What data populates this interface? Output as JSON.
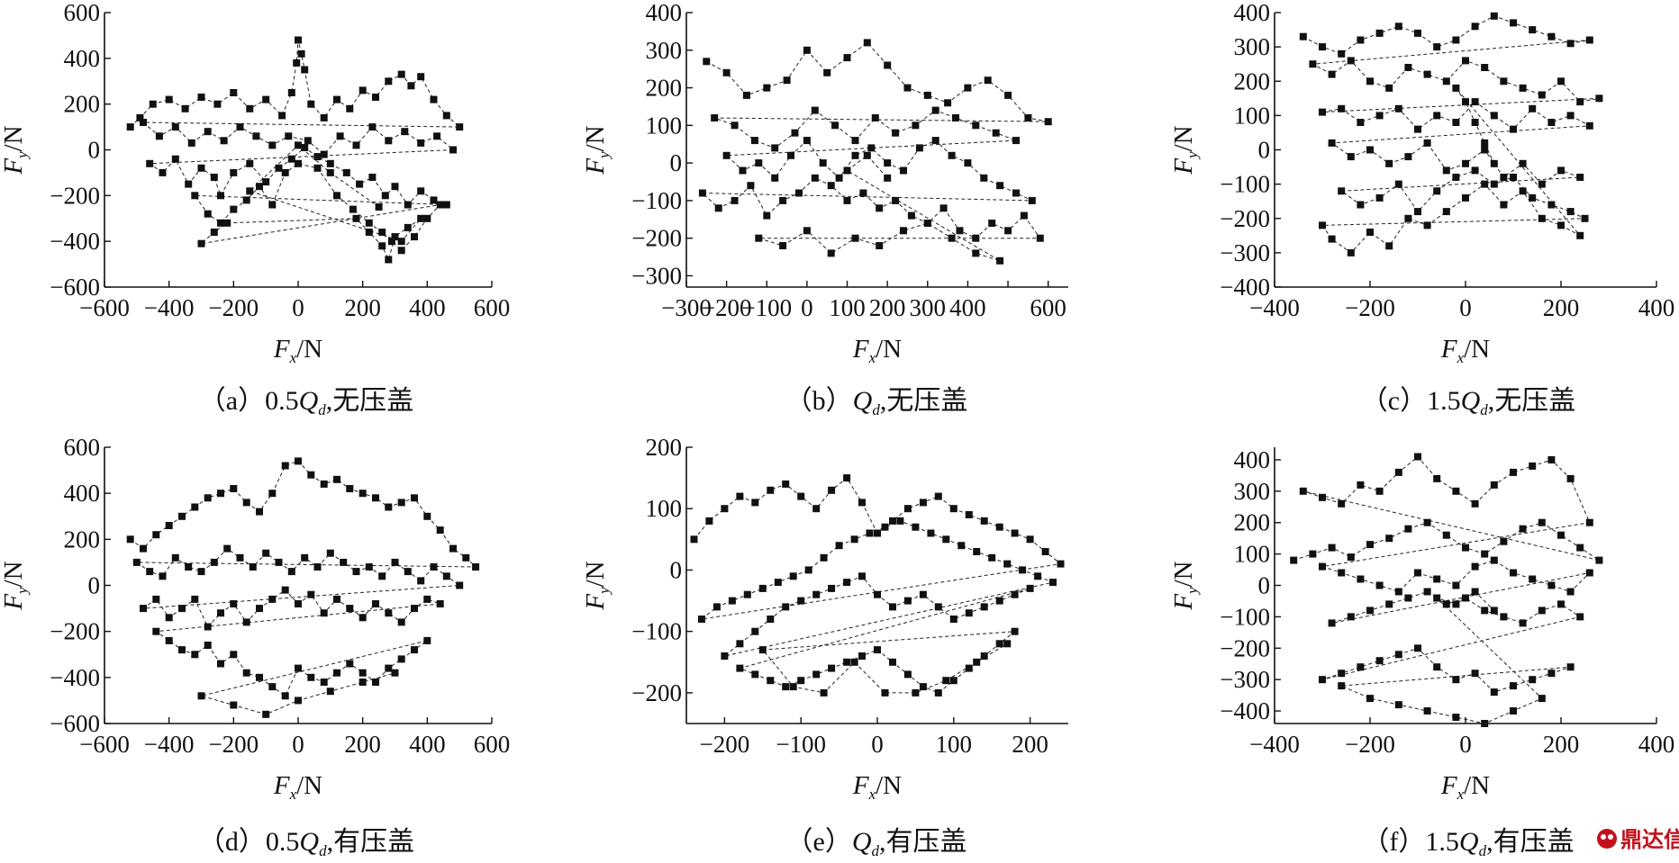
{
  "watermark": {
    "text": "鼎达信",
    "color": "#c0121c",
    "icon": "logo-badge-icon"
  },
  "chart_data": [
    {
      "id": "a",
      "type": "scatter",
      "caption": "（a）0.5Q_d,无压盖",
      "caption_parts": [
        "（a）0.5",
        "Q",
        "d",
        ",无压盖"
      ],
      "xlabel": "F_x/N",
      "ylabel": "F_y/N",
      "xlim": [
        -600,
        600
      ],
      "ylim": [
        -600,
        600
      ],
      "xticks": [
        -600,
        -400,
        -200,
        0,
        200,
        400,
        600
      ],
      "yticks": [
        -600,
        -400,
        -200,
        0,
        200,
        400,
        600
      ],
      "x": [
        -520,
        -490,
        -450,
        -400,
        -350,
        -300,
        -250,
        -200,
        -150,
        -100,
        -50,
        -20,
        -5,
        0,
        10,
        20,
        40,
        80,
        120,
        160,
        200,
        240,
        280,
        320,
        350,
        380,
        420,
        460,
        500,
        -480,
        -430,
        -380,
        -330,
        -280,
        -230,
        -180,
        -130,
        -80,
        -30,
        30,
        80,
        130,
        180,
        230,
        280,
        330,
        380,
        430,
        480,
        -460,
        -420,
        -380,
        -340,
        -300,
        -260,
        -240,
        -200,
        -150,
        -100,
        -60,
        -20,
        20,
        60,
        100,
        150,
        190,
        230,
        270,
        300,
        340,
        380,
        420,
        460,
        -320,
        -280,
        -240,
        -200,
        -160,
        -120,
        -80,
        -40,
        0,
        60,
        120,
        170,
        220,
        260,
        290,
        320,
        360,
        400,
        440,
        -300,
        -260,
        -220,
        180,
        220,
        260,
        280,
        300,
        340,
        380,
        320,
        -150,
        0,
        100,
        250
      ],
      "y": [
        100,
        140,
        200,
        220,
        180,
        230,
        200,
        250,
        180,
        220,
        150,
        250,
        380,
        480,
        420,
        350,
        200,
        140,
        220,
        180,
        260,
        230,
        300,
        330,
        280,
        320,
        220,
        150,
        100,
        120,
        60,
        100,
        30,
        80,
        40,
        100,
        60,
        20,
        60,
        40,
        -20,
        60,
        20,
        100,
        40,
        80,
        30,
        60,
        0,
        -60,
        -100,
        -40,
        -150,
        -80,
        -120,
        -200,
        -100,
        -60,
        -140,
        -80,
        -40,
        10,
        -30,
        -60,
        -100,
        -150,
        -120,
        -200,
        -160,
        -240,
        -180,
        -220,
        -240,
        -200,
        -280,
        -320,
        -260,
        -220,
        -160,
        -240,
        -100,
        -60,
        -80,
        -200,
        -260,
        -320,
        -360,
        -400,
        -440,
        -380,
        -300,
        -240,
        -410,
        -360,
        -320,
        -300,
        -360,
        -420,
        -480,
        -380,
        -340,
        -300,
        -400,
        -180,
        20,
        -100,
        -250
      ]
    },
    {
      "id": "b",
      "type": "scatter",
      "caption": "（b）Q_d,无压盖",
      "caption_parts": [
        "（b）",
        "Q",
        "d",
        ",无压盖"
      ],
      "xlabel": "F_x/N",
      "ylabel": "F_y/N",
      "xlim": [
        -300,
        650
      ],
      "ylim": [
        -330,
        400
      ],
      "xticks": [
        -300,
        -200,
        -100,
        0,
        100,
        200,
        300,
        400,
        500,
        600
      ],
      "xtick_labels": [
        "−300",
        "−200",
        "−100",
        "0",
        "100",
        "200",
        "300",
        "400",
        "600"
      ],
      "xtick_label_values": [
        -300,
        -200,
        -100,
        0,
        100,
        200,
        300,
        400,
        600
      ],
      "yticks": [
        -300,
        -200,
        -100,
        0,
        100,
        200,
        300,
        400
      ],
      "x": [
        -250,
        -200,
        -150,
        -100,
        -50,
        0,
        50,
        100,
        150,
        200,
        250,
        300,
        350,
        400,
        450,
        500,
        550,
        600,
        -230,
        -180,
        -130,
        -80,
        -30,
        20,
        70,
        120,
        170,
        220,
        270,
        320,
        370,
        420,
        470,
        520,
        -200,
        -160,
        -120,
        -80,
        -40,
        0,
        40,
        80,
        120,
        160,
        200,
        240,
        280,
        320,
        360,
        400,
        440,
        480,
        520,
        560,
        -260,
        -220,
        -180,
        -140,
        -100,
        -60,
        -20,
        20,
        60,
        100,
        140,
        180,
        220,
        260,
        300,
        340,
        380,
        420,
        460,
        500,
        540,
        580,
        -120,
        -60,
        0,
        60,
        120,
        180,
        240,
        300,
        360,
        420,
        480,
        100,
        150,
        200
      ],
      "y": [
        270,
        240,
        180,
        200,
        220,
        300,
        240,
        280,
        320,
        260,
        200,
        180,
        160,
        200,
        220,
        180,
        120,
        110,
        120,
        100,
        60,
        40,
        80,
        140,
        100,
        60,
        120,
        80,
        100,
        140,
        120,
        100,
        80,
        60,
        20,
        -20,
        0,
        -40,
        20,
        60,
        0,
        -40,
        20,
        40,
        0,
        -20,
        40,
        60,
        20,
        0,
        -40,
        -60,
        -80,
        -100,
        -80,
        -120,
        -100,
        -60,
        -140,
        -100,
        -80,
        -40,
        -60,
        -100,
        -80,
        -120,
        -100,
        -140,
        -160,
        -120,
        -180,
        -200,
        -160,
        -180,
        -140,
        -200,
        -200,
        -220,
        -180,
        -240,
        -200,
        -220,
        -180,
        -160,
        -200,
        -240,
        -260,
        -20,
        20,
        -40
      ]
    },
    {
      "id": "c",
      "type": "scatter",
      "caption": "（c）1.5Q_d,无压盖",
      "caption_parts": [
        "（c）1.5",
        "Q",
        "d",
        ",无压盖"
      ],
      "xlabel": "F_x/N",
      "ylabel": "F_y/N",
      "xlim": [
        -400,
        400
      ],
      "ylim": [
        -400,
        400
      ],
      "xticks": [
        -400,
        -200,
        0,
        200,
        400
      ],
      "yticks": [
        -400,
        -300,
        -200,
        -100,
        0,
        100,
        200,
        300,
        400
      ],
      "x": [
        -340,
        -300,
        -260,
        -220,
        -180,
        -140,
        -100,
        -60,
        -20,
        20,
        60,
        100,
        140,
        180,
        220,
        260,
        -320,
        -280,
        -240,
        -200,
        -160,
        -120,
        -80,
        -40,
        0,
        40,
        80,
        120,
        160,
        200,
        240,
        280,
        -300,
        -260,
        -220,
        -180,
        -140,
        -100,
        -60,
        -20,
        20,
        60,
        100,
        140,
        180,
        220,
        260,
        -280,
        -240,
        -200,
        -160,
        -120,
        -80,
        -40,
        0,
        40,
        80,
        120,
        160,
        200,
        240,
        -260,
        -220,
        -180,
        -140,
        -100,
        -60,
        -20,
        20,
        60,
        100,
        140,
        180,
        220,
        250,
        -300,
        -280,
        -240,
        -200,
        -160,
        -120,
        -80,
        -40,
        0,
        40,
        80,
        120,
        160,
        200,
        240,
        -20,
        0,
        20,
        40,
        60
      ],
      "y": [
        330,
        300,
        280,
        320,
        340,
        360,
        340,
        300,
        320,
        360,
        390,
        370,
        350,
        330,
        310,
        320,
        250,
        220,
        260,
        200,
        180,
        240,
        220,
        200,
        260,
        240,
        200,
        180,
        160,
        200,
        140,
        150,
        110,
        120,
        80,
        100,
        120,
        60,
        100,
        80,
        140,
        100,
        60,
        120,
        80,
        100,
        70,
        20,
        -20,
        0,
        -40,
        -20,
        20,
        -60,
        -40,
        0,
        -80,
        -40,
        -100,
        -60,
        -80,
        -120,
        -160,
        -140,
        -100,
        -180,
        -120,
        -80,
        -60,
        -100,
        -80,
        -140,
        -160,
        -180,
        -200,
        -220,
        -260,
        -300,
        -240,
        -280,
        -200,
        -220,
        -180,
        -140,
        -100,
        -160,
        -120,
        -200,
        -220,
        -250,
        180,
        140,
        80,
        20,
        -40
      ]
    },
    {
      "id": "d",
      "type": "scatter",
      "caption": "（d）0.5Q_d,有压盖",
      "caption_parts": [
        "（d）0.5",
        "Q",
        "d",
        ",有压盖"
      ],
      "xlabel": "F_x/N",
      "ylabel": "F_y/N",
      "xlim": [
        -600,
        600
      ],
      "ylim": [
        -600,
        600
      ],
      "xticks": [
        -600,
        -400,
        -200,
        0,
        200,
        400,
        600
      ],
      "yticks": [
        -600,
        -400,
        -200,
        0,
        200,
        400,
        600
      ],
      "x": [
        -520,
        -480,
        -440,
        -400,
        -360,
        -320,
        -280,
        -240,
        -200,
        -160,
        -120,
        -80,
        -40,
        0,
        40,
        80,
        120,
        160,
        200,
        240,
        280,
        320,
        360,
        400,
        440,
        480,
        520,
        550,
        -500,
        -460,
        -420,
        -380,
        -340,
        -300,
        -260,
        -220,
        -180,
        -140,
        -100,
        -60,
        -20,
        20,
        60,
        100,
        140,
        180,
        220,
        260,
        300,
        340,
        380,
        420,
        460,
        500,
        -480,
        -440,
        -400,
        -360,
        -320,
        -280,
        -240,
        -200,
        -160,
        -120,
        -80,
        -40,
        0,
        40,
        80,
        120,
        160,
        200,
        240,
        280,
        320,
        360,
        400,
        440,
        -440,
        -400,
        -360,
        -320,
        -280,
        -240,
        -200,
        -160,
        -120,
        -80,
        -40,
        0,
        40,
        80,
        120,
        160,
        200,
        240,
        280,
        320,
        360,
        400,
        -300,
        -200,
        -100,
        0,
        100,
        200,
        300
      ],
      "y": [
        200,
        160,
        220,
        260,
        300,
        340,
        380,
        400,
        420,
        360,
        320,
        400,
        520,
        540,
        480,
        440,
        460,
        420,
        400,
        380,
        340,
        360,
        380,
        300,
        240,
        160,
        120,
        80,
        100,
        60,
        40,
        120,
        80,
        60,
        100,
        160,
        120,
        80,
        140,
        100,
        60,
        120,
        80,
        140,
        100,
        60,
        80,
        40,
        100,
        60,
        20,
        80,
        40,
        0,
        -100,
        -60,
        -140,
        -100,
        -60,
        -180,
        -120,
        -80,
        -160,
        -100,
        -60,
        -20,
        -80,
        -40,
        -120,
        -60,
        -100,
        -140,
        -80,
        -120,
        -160,
        -100,
        -60,
        -80,
        -200,
        -240,
        -280,
        -300,
        -260,
        -340,
        -300,
        -380,
        -400,
        -440,
        -480,
        -360,
        -400,
        -420,
        -380,
        -340,
        -380,
        -420,
        -360,
        -320,
        -280,
        -240,
        -480,
        -520,
        -560,
        -500,
        -460,
        -420,
        -380
      ]
    },
    {
      "id": "e",
      "type": "scatter",
      "caption": "（e）Q_d,有压盖",
      "caption_parts": [
        "（e）",
        "Q",
        "d",
        ",有压盖"
      ],
      "xlabel": "F_x/N",
      "ylabel": "F_y/N",
      "xlim": [
        -250,
        250
      ],
      "ylim": [
        -250,
        200
      ],
      "xticks": [
        -200,
        -100,
        0,
        100,
        200
      ],
      "yticks": [
        -200,
        -100,
        0,
        100,
        200
      ],
      "x": [
        -240,
        -220,
        -200,
        -180,
        -160,
        -140,
        -120,
        -100,
        -80,
        -60,
        -40,
        -20,
        0,
        20,
        40,
        60,
        80,
        100,
        120,
        140,
        160,
        180,
        200,
        220,
        240,
        -230,
        -210,
        -190,
        -170,
        -150,
        -130,
        -110,
        -90,
        -70,
        -50,
        -30,
        -10,
        10,
        30,
        50,
        70,
        90,
        110,
        130,
        150,
        170,
        190,
        210,
        230,
        -200,
        -180,
        -160,
        -140,
        -120,
        -100,
        -80,
        -60,
        -40,
        -20,
        0,
        20,
        40,
        60,
        80,
        100,
        120,
        140,
        160,
        180,
        200,
        -180,
        -160,
        -140,
        -120,
        -100,
        -80,
        -60,
        -40,
        -20,
        0,
        20,
        40,
        60,
        80,
        100,
        120,
        140,
        160,
        180,
        -150,
        -110,
        -70,
        -30,
        10,
        50,
        90,
        130,
        170
      ],
      "y": [
        50,
        80,
        100,
        120,
        110,
        130,
        140,
        120,
        100,
        130,
        150,
        110,
        60,
        80,
        100,
        110,
        120,
        100,
        90,
        80,
        70,
        60,
        50,
        30,
        10,
        -80,
        -60,
        -50,
        -40,
        -30,
        -20,
        -10,
        0,
        20,
        40,
        50,
        60,
        70,
        80,
        70,
        60,
        50,
        40,
        30,
        20,
        10,
        0,
        -10,
        -20,
        -140,
        -120,
        -100,
        -80,
        -60,
        -50,
        -40,
        -30,
        -20,
        -10,
        -40,
        -60,
        -50,
        -40,
        -60,
        -80,
        -70,
        -60,
        -50,
        -40,
        -30,
        -160,
        -170,
        -180,
        -190,
        -180,
        -170,
        -160,
        -150,
        -140,
        -130,
        -150,
        -170,
        -190,
        -200,
        -180,
        -160,
        -140,
        -120,
        -100,
        -130,
        -190,
        -200,
        -150,
        -200,
        -200,
        -180,
        -150,
        -120
      ]
    },
    {
      "id": "f",
      "type": "scatter",
      "caption": "（f）1.5Q_d,有压盖",
      "caption_parts": [
        "（f）1.5",
        "Q",
        "d",
        ",有压盖"
      ],
      "xlabel": "F_x/N",
      "ylabel": "F_y/N",
      "xlim": [
        -400,
        400
      ],
      "ylim": [
        -440,
        440
      ],
      "xticks": [
        -400,
        -200,
        0,
        200,
        400
      ],
      "yticks": [
        -400,
        -300,
        -200,
        -100,
        0,
        100,
        200,
        300,
        400
      ],
      "x": [
        -360,
        -320,
        -280,
        -240,
        -200,
        -160,
        -120,
        -80,
        -40,
        0,
        40,
        80,
        120,
        160,
        200,
        240,
        280,
        -340,
        -300,
        -260,
        -220,
        -180,
        -140,
        -100,
        -60,
        -20,
        20,
        60,
        100,
        140,
        180,
        220,
        260,
        -300,
        -260,
        -220,
        -180,
        -140,
        -100,
        -60,
        -20,
        20,
        60,
        100,
        140,
        180,
        220,
        260,
        -280,
        -240,
        -200,
        -160,
        -120,
        -80,
        -40,
        0,
        40,
        80,
        120,
        160,
        200,
        240,
        -300,
        -260,
        -220,
        -180,
        -140,
        -100,
        -60,
        -20,
        20,
        60,
        100,
        140,
        180,
        220,
        -260,
        -200,
        -140,
        -80,
        -20,
        40,
        100,
        160,
        -60,
        -20,
        20,
        60
      ],
      "y": [
        80,
        100,
        120,
        90,
        130,
        150,
        180,
        200,
        160,
        120,
        100,
        140,
        180,
        200,
        160,
        120,
        80,
        300,
        280,
        260,
        320,
        300,
        360,
        410,
        340,
        300,
        260,
        320,
        360,
        380,
        400,
        340,
        200,
        60,
        40,
        20,
        0,
        -20,
        40,
        20,
        0,
        60,
        80,
        40,
        20,
        0,
        -20,
        40,
        -120,
        -100,
        -80,
        -60,
        -40,
        -20,
        -60,
        -40,
        -80,
        -100,
        -120,
        -80,
        -60,
        -100,
        -300,
        -280,
        -260,
        -240,
        -220,
        -200,
        -260,
        -300,
        -280,
        -340,
        -320,
        -300,
        -280,
        -260,
        -320,
        -360,
        -380,
        -400,
        -420,
        -440,
        -400,
        -360,
        -40,
        -60,
        -20,
        -80
      ]
    }
  ]
}
